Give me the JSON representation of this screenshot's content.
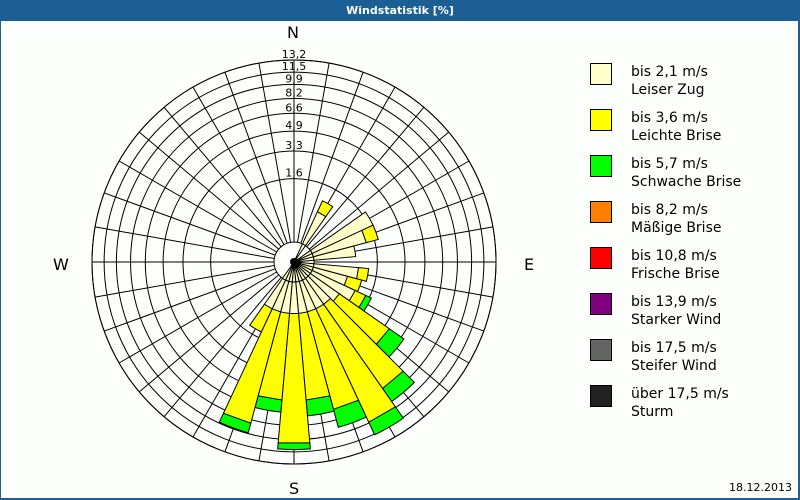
{
  "title": "Windstatistik [%]",
  "date": "18.12.2013",
  "directions": {
    "n": "N",
    "e": "E",
    "s": "S",
    "w": "W"
  },
  "rings": [
    "1,6",
    "3,3",
    "4,9",
    "6,6",
    "8,2",
    "9,9",
    "11,5",
    "13,2"
  ],
  "legend": [
    {
      "range": "bis 2,1 m/s",
      "name": "Leiser Zug",
      "color": "#ffffcc"
    },
    {
      "range": "bis 3,6 m/s",
      "name": "Leichte Brise",
      "color": "#ffff00"
    },
    {
      "range": "bis 5,7 m/s",
      "name": "Schwache Brise",
      "color": "#00ff00"
    },
    {
      "range": "bis 8,2 m/s",
      "name": "Mäßige Brise",
      "color": "#ff8000"
    },
    {
      "range": "bis 10,8 m/s",
      "name": "Frische Brise",
      "color": "#ff0000"
    },
    {
      "range": "bis 13,9 m/s",
      "name": "Starker Wind",
      "color": "#800080"
    },
    {
      "range": "bis 17,5 m/s",
      "name": "Steifer Wind",
      "color": "#646464"
    },
    {
      "range": "über 17,5 m/s",
      "name": "Sturm",
      "color": "#222222"
    }
  ],
  "chart_data": {
    "type": "rose",
    "title": "Windstatistik [%]",
    "unit": "%",
    "sector_width_deg": 10,
    "ring_ticks": [
      1.6,
      3.3,
      4.9,
      6.6,
      8.2,
      9.9,
      11.5,
      13.2
    ],
    "rmax": 13.2,
    "series_names": [
      "bis 2,1 m/s",
      "bis 3,6 m/s",
      "bis 5,7 m/s",
      "bis 8,2 m/s",
      "bis 10,8 m/s",
      "bis 13,9 m/s",
      "bis 17,5 m/s",
      "über 17,5 m/s"
    ],
    "sectors": [
      {
        "dir": 30,
        "values": [
          0.5,
          0.4,
          0
        ]
      },
      {
        "dir": 60,
        "values": [
          1.8,
          0,
          0
        ]
      },
      {
        "dir": 70,
        "values": [
          1.2,
          0.6,
          0
        ]
      },
      {
        "dir": 80,
        "values": [
          0.7,
          0,
          0
        ]
      },
      {
        "dir": 100,
        "values": [
          0.8,
          0.4,
          0
        ]
      },
      {
        "dir": 110,
        "values": [
          0.5,
          0.5,
          0
        ]
      },
      {
        "dir": 120,
        "values": [
          0.9,
          0.5,
          0.3
        ]
      },
      {
        "dir": 130,
        "values": [
          0.5,
          3.2,
          1.5
        ]
      },
      {
        "dir": 140,
        "values": [
          0.4,
          6.8,
          1.8
        ]
      },
      {
        "dir": 150,
        "values": [
          0.4,
          9.4,
          1.8
        ]
      },
      {
        "dir": 160,
        "values": [
          0.4,
          6.6,
          2.1
        ]
      },
      {
        "dir": 170,
        "values": [
          0.4,
          5.2,
          1.6
        ]
      },
      {
        "dir": 180,
        "values": [
          0.4,
          10.0,
          0.8
        ]
      },
      {
        "dir": 190,
        "values": [
          0.4,
          5.2,
          1.2
        ]
      },
      {
        "dir": 200,
        "values": [
          0.4,
          8.2,
          1.2
        ]
      },
      {
        "dir": 210,
        "values": [
          0.4,
          0.9,
          0
        ]
      }
    ]
  }
}
